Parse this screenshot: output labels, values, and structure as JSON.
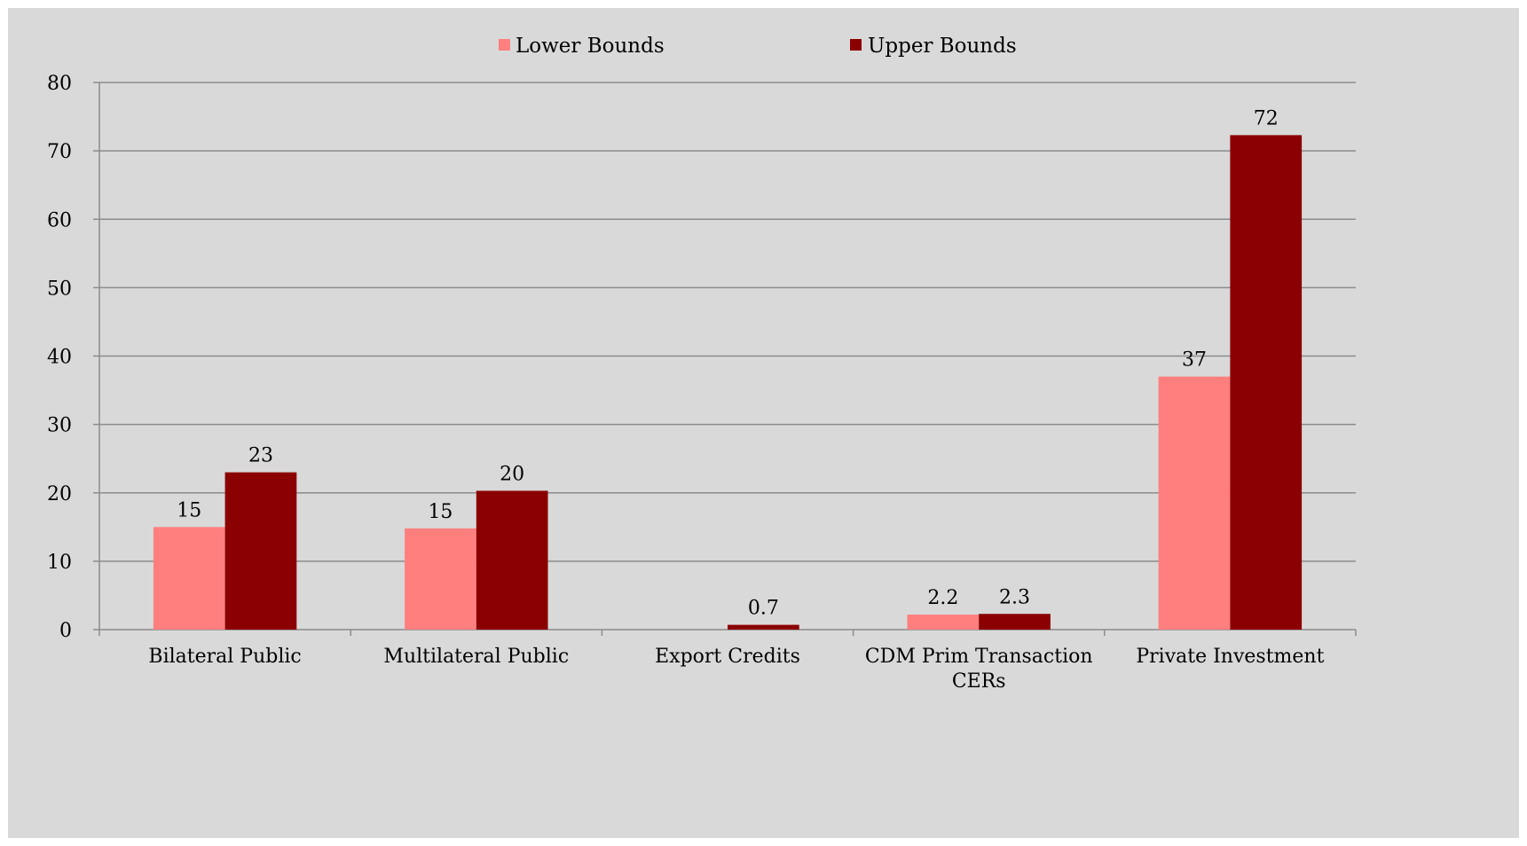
{
  "chart_data": {
    "type": "bar",
    "title": "",
    "xlabel": "",
    "ylabel": "",
    "categories": [
      [
        "Bilateral Public"
      ],
      [
        "Multilateral Public"
      ],
      [
        "Export Credits"
      ],
      [
        "CDM Prim Transaction",
        "CERs"
      ],
      [
        "Private Investment"
      ]
    ],
    "series": [
      {
        "name": "Lower Bounds",
        "color": "#ff7f7f",
        "values": [
          15,
          14.8,
          0,
          2.2,
          37
        ],
        "labels": [
          "15",
          "15",
          "",
          "2.2",
          "37"
        ]
      },
      {
        "name": "Upper Bounds",
        "color": "#8b0000",
        "values": [
          23,
          20.3,
          0.7,
          2.3,
          72.3
        ],
        "labels": [
          "23",
          "20",
          "0.7",
          "2.3",
          "72"
        ]
      }
    ],
    "ylim": [
      0,
      80
    ],
    "yticks": [
      0,
      10,
      20,
      30,
      40,
      50,
      60,
      70,
      80
    ],
    "grid": true,
    "legend_position": "top-center",
    "background": "#d9d9d9",
    "grid_color": "#8c8c8c"
  }
}
